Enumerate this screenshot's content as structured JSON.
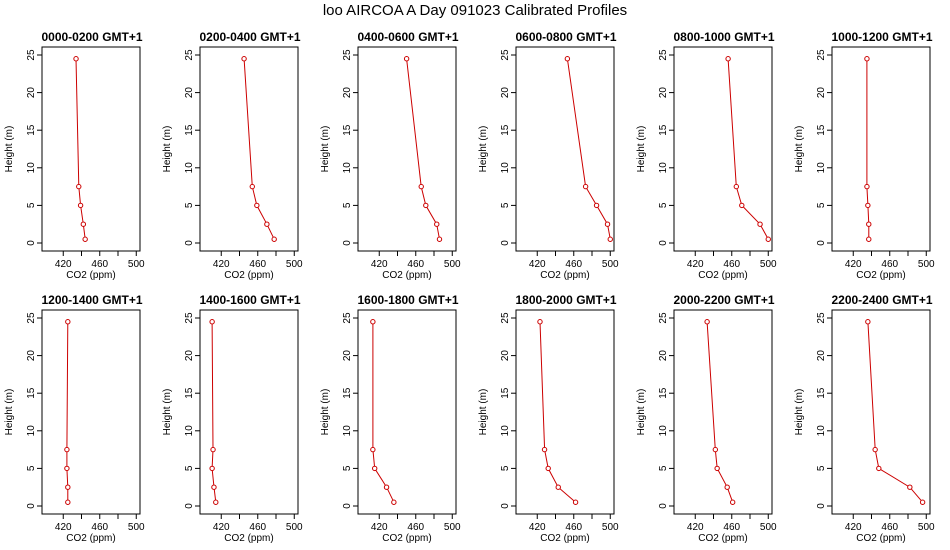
{
  "title": "loo AIRCOA A  Day 091023  Calibrated Profiles",
  "chart_data": {
    "type": "line",
    "xlabel": "CO2 (ppm)",
    "ylabel": "Height (m)",
    "xlim": [
      400,
      503
    ],
    "ylim": [
      0,
      25
    ],
    "xticks": [
      420,
      460,
      500
    ],
    "xticks_minor": [
      440,
      480
    ],
    "yticks": [
      0,
      5,
      10,
      15,
      20,
      25
    ],
    "line_color": "#cc0000",
    "marker": "open-circle",
    "heights": [
      24.5,
      7.5,
      5,
      2.5,
      0.5
    ],
    "panels": [
      {
        "title": "0000-0200 GMT+1",
        "co2": [
          434,
          437,
          439,
          442,
          444
        ]
      },
      {
        "title": "0200-0400 GMT+1",
        "co2": [
          445,
          454,
          459,
          470,
          478
        ]
      },
      {
        "title": "0400-0600 GMT+1",
        "co2": [
          450,
          466,
          471,
          483,
          486
        ]
      },
      {
        "title": "0600-0800 GMT+1",
        "co2": [
          453,
          473,
          485,
          497,
          500
        ]
      },
      {
        "title": "0800-1000 GMT+1",
        "co2": [
          456,
          465,
          471,
          491,
          500
        ]
      },
      {
        "title": "1000-1200 GMT+1",
        "co2": [
          435,
          435,
          436,
          437,
          437
        ]
      },
      {
        "title": "1200-1400 GMT+1",
        "co2": [
          425,
          424,
          424,
          425,
          425
        ]
      },
      {
        "title": "1400-1600 GMT+1",
        "co2": [
          410,
          411,
          410,
          412,
          414
        ]
      },
      {
        "title": "1600-1800 GMT+1",
        "co2": [
          413,
          413,
          415,
          428,
          436
        ]
      },
      {
        "title": "1800-2000 GMT+1",
        "co2": [
          423,
          428,
          432,
          443,
          462
        ]
      },
      {
        "title": "2000-2200 GMT+1",
        "co2": [
          433,
          442,
          444,
          455,
          461
        ]
      },
      {
        "title": "2200-2400 GMT+1",
        "co2": [
          436,
          444,
          448,
          482,
          496
        ]
      }
    ]
  }
}
